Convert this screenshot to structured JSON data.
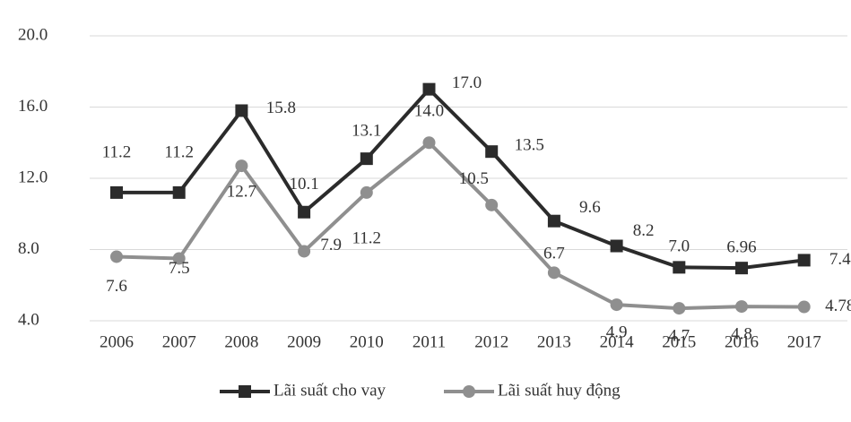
{
  "chart_data": {
    "type": "line",
    "categories": [
      "2006",
      "2007",
      "2008",
      "2009",
      "2010",
      "2011",
      "2012",
      "2013",
      "2014",
      "2015",
      "2016",
      "2017"
    ],
    "series": [
      {
        "name": "Lãi suất cho vay",
        "color": "#2b2b2b",
        "values": [
          11.2,
          11.2,
          15.8,
          10.1,
          13.1,
          17.0,
          13.5,
          9.6,
          8.2,
          7.0,
          6.96,
          7.4
        ],
        "value_labels": [
          "11.2",
          "11.2",
          "15.8",
          "10.1",
          "13.1",
          "17.0",
          "13.5",
          "9.6",
          "8.2",
          "7.0",
          "6.96",
          "7.4"
        ]
      },
      {
        "name": "Lãi suất huy động",
        "color": "#8f8f8f",
        "values": [
          7.6,
          7.5,
          12.7,
          7.9,
          11.2,
          14.0,
          10.5,
          6.7,
          4.9,
          4.7,
          4.8,
          4.78
        ],
        "value_labels": [
          "7.6",
          "7.5",
          "12.7",
          "7.9",
          "11.2",
          "14.0",
          "10.5",
          "6.7",
          "4.9",
          "4.7",
          "4.8",
          "4.78"
        ]
      }
    ],
    "ylim": [
      4,
      20
    ],
    "yticks": [
      {
        "value": 4,
        "label": "4.0"
      },
      {
        "value": 8,
        "label": "8.0"
      },
      {
        "value": 12,
        "label": "12.0"
      },
      {
        "value": 16,
        "label": "16.0"
      },
      {
        "value": 20,
        "label": "20.0"
      }
    ],
    "grid": true,
    "legend": "bottom"
  }
}
